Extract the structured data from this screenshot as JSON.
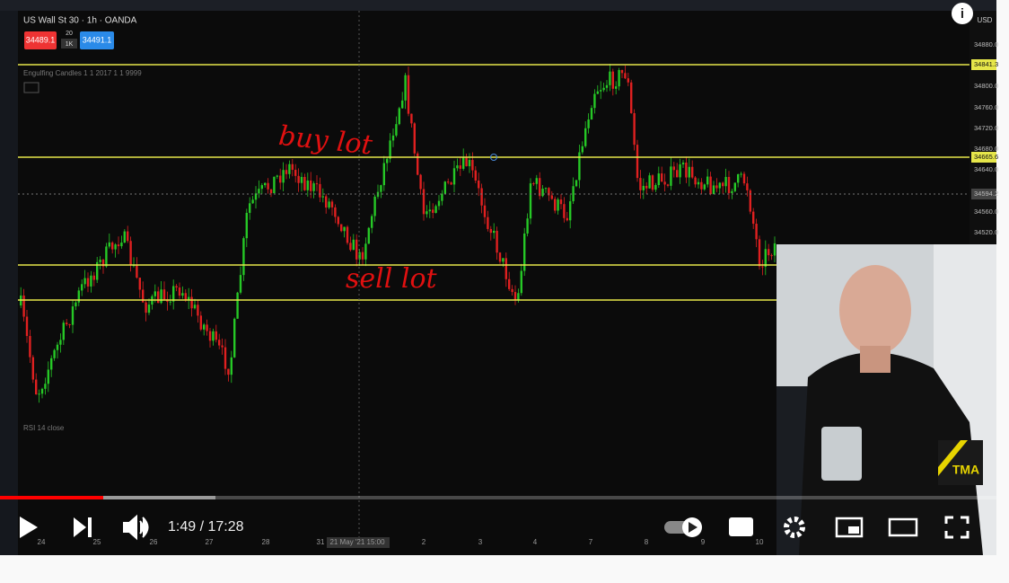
{
  "chart_header": {
    "symbol": "US Wall St 30 · 1h · OANDA",
    "sell_price": "34489.1",
    "spread_top": "20",
    "spread_bottom": "1K",
    "buy_price": "34491.1",
    "indicator": "Engulfing Candles 1 1 2017 1 1 9999",
    "rsi": "RSI 14 close"
  },
  "price_axis": {
    "currency": "USD",
    "labels": [
      "34880.0",
      "34841.3",
      "34800.0",
      "34760.0",
      "34720.0",
      "34680.0",
      "34665.6",
      "34640.0",
      "34594.2",
      "34560.0",
      "34520.0"
    ]
  },
  "time_axis": {
    "labels": [
      "24",
      "25",
      "26",
      "27",
      "28",
      "31",
      "21 May '21  15:00",
      "2",
      "3",
      "4",
      "7",
      "8",
      "9",
      "10"
    ]
  },
  "annotations": {
    "buy": "buy lot",
    "sell": "sell lot"
  },
  "overlay": {
    "logo": "TMA",
    "info": "i"
  },
  "player": {
    "time": "1:49 / 17:28"
  }
}
